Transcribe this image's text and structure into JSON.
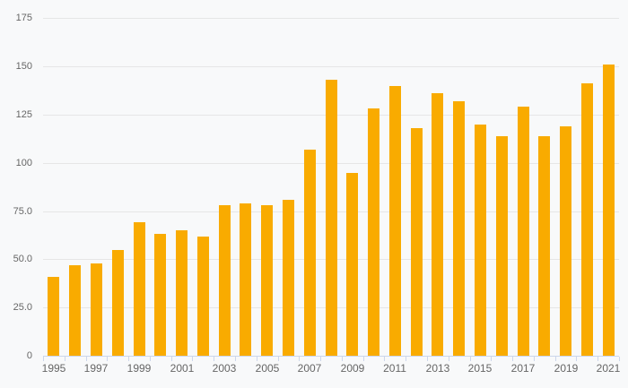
{
  "chart_data": {
    "type": "bar",
    "title": "",
    "xlabel": "",
    "ylabel": "",
    "categories": [
      "1995",
      "1996",
      "1997",
      "1998",
      "1999",
      "2000",
      "2001",
      "2002",
      "2003",
      "2004",
      "2005",
      "2006",
      "2007",
      "2008",
      "2009",
      "2010",
      "2011",
      "2012",
      "2013",
      "2014",
      "2015",
      "2016",
      "2017",
      "2018",
      "2019",
      "2020",
      "2021"
    ],
    "values": [
      41,
      47,
      48,
      55,
      69,
      63,
      65,
      62,
      78,
      79,
      78,
      81,
      107,
      143,
      95,
      128,
      140,
      118,
      136,
      132,
      120,
      114,
      129,
      114,
      119,
      141,
      151
    ],
    "ylim": [
      0,
      175
    ],
    "grid": true,
    "legend": false,
    "y_ticks": [
      {
        "value": 0,
        "label": "0"
      },
      {
        "value": 25,
        "label": "25.0"
      },
      {
        "value": 50,
        "label": "50.0"
      },
      {
        "value": 75,
        "label": "75.0"
      },
      {
        "value": 100,
        "label": "100"
      },
      {
        "value": 125,
        "label": "125"
      },
      {
        "value": 150,
        "label": "150"
      },
      {
        "value": 175,
        "label": "175"
      }
    ],
    "x_tick_labels": [
      "1995",
      "1997",
      "1999",
      "2001",
      "2003",
      "2005",
      "2007",
      "2009",
      "2011",
      "2013",
      "2015",
      "2017",
      "2019",
      "2021"
    ]
  },
  "colors": {
    "bar": "#f9ab00",
    "grid": "#e6e6e6",
    "axis": "#ccd6eb",
    "text": "#666666",
    "background": "#f8f9fa"
  }
}
